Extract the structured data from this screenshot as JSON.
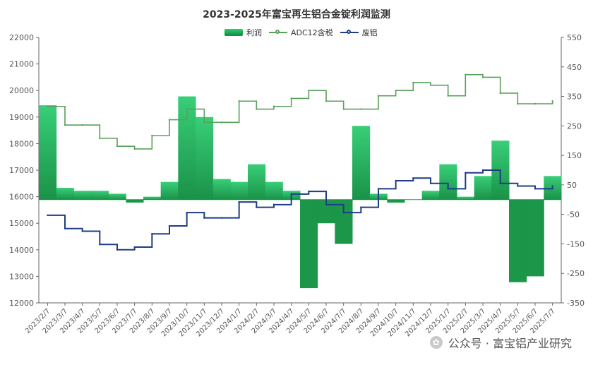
{
  "chart_data": {
    "type": "line",
    "title": "2023-2025年富宝再生铝合金锭利润监测",
    "legend": [
      {
        "name": "利润",
        "kind": "area",
        "color_top": "#2ecc71",
        "color_bottom": "#0e8c3f"
      },
      {
        "name": "ADC12含税",
        "kind": "line",
        "color": "#5aa05a"
      },
      {
        "name": "废铝",
        "kind": "line",
        "color": "#1f3c88"
      }
    ],
    "legend_placement": "top-center",
    "grid": false,
    "y_left": {
      "min": 12000,
      "max": 22000,
      "ticks": [
        12000,
        13000,
        14000,
        15000,
        16000,
        17000,
        18000,
        19000,
        20000,
        21000,
        22000
      ]
    },
    "y_right": {
      "min": -350,
      "max": 550,
      "ticks": [
        -350,
        -250,
        -150,
        -50,
        50,
        150,
        250,
        350,
        450,
        550
      ]
    },
    "x_labels": [
      "2023/2/7",
      "2023/3/7",
      "2023/4/7",
      "2023/5/7",
      "2023/6/7",
      "2023/7/7",
      "2023/8/7",
      "2023/9/7",
      "2023/10/7",
      "2023/11/7",
      "2023/12/7",
      "2024/1/7",
      "2024/2/7",
      "2024/3/7",
      "2024/4/7",
      "2024/5/7",
      "2024/6/7",
      "2024/7/7",
      "2024/8/7",
      "2024/9/7",
      "2024/10/7",
      "2024/11/7",
      "2024/12/7",
      "2025/1/7",
      "2025/2/7",
      "2025/3/7",
      "2025/4/7",
      "2025/5/7",
      "2025/6/7",
      "2025/7/7"
    ],
    "series": [
      {
        "name": "ADC12含税",
        "axis": "left",
        "values": [
          19400,
          18700,
          18700,
          18200,
          17900,
          17800,
          18300,
          18900,
          19300,
          18800,
          18800,
          19600,
          19300,
          19400,
          19700,
          20000,
          19600,
          19300,
          19300,
          19800,
          20000,
          20300,
          20200,
          19800,
          20600,
          20500,
          19900,
          19500,
          19500,
          19600
        ]
      },
      {
        "name": "废铝",
        "axis": "left",
        "values": [
          15300,
          14800,
          14700,
          14200,
          14000,
          14100,
          14600,
          14900,
          15400,
          15200,
          15200,
          15800,
          15600,
          15700,
          16100,
          16200,
          15700,
          15400,
          15600,
          16300,
          16600,
          16700,
          16500,
          16300,
          16900,
          17000,
          16500,
          16400,
          16300,
          16400
        ]
      },
      {
        "name": "利润",
        "axis": "right",
        "values": [
          320,
          40,
          30,
          30,
          20,
          -10,
          10,
          60,
          350,
          280,
          70,
          60,
          120,
          60,
          30,
          -300,
          -80,
          -150,
          250,
          20,
          -10,
          0,
          30,
          120,
          10,
          80,
          200,
          -280,
          -260,
          80
        ]
      }
    ]
  },
  "watermark": {
    "text": "公众号 · 富宝铝产业研究"
  }
}
